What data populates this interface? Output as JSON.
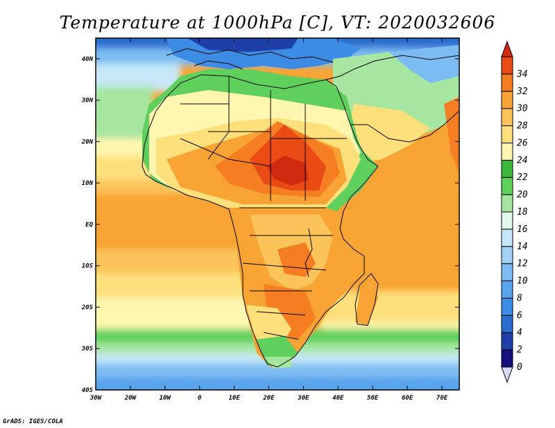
{
  "title": "Temperature at 1000hPa [C], VT: 2020032606",
  "credit": "GrADS: IGES/COLA",
  "map": {
    "region": "Africa",
    "lon_range": [
      -30,
      75
    ],
    "lat_range": [
      -40,
      45
    ],
    "lon_ticks": [
      {
        "value": -30,
        "label": "30W"
      },
      {
        "value": -20,
        "label": "20W"
      },
      {
        "value": -10,
        "label": "10W"
      },
      {
        "value": 0,
        "label": "0"
      },
      {
        "value": 10,
        "label": "10E"
      },
      {
        "value": 20,
        "label": "20E"
      },
      {
        "value": 30,
        "label": "30E"
      },
      {
        "value": 40,
        "label": "40E"
      },
      {
        "value": 50,
        "label": "50E"
      },
      {
        "value": 60,
        "label": "60E"
      },
      {
        "value": 70,
        "label": "70E"
      }
    ],
    "lat_ticks": [
      {
        "value": 40,
        "label": "40N"
      },
      {
        "value": 30,
        "label": "30N"
      },
      {
        "value": 20,
        "label": "20N"
      },
      {
        "value": 10,
        "label": "10N"
      },
      {
        "value": 0,
        "label": "EQ"
      },
      {
        "value": -10,
        "label": "10S"
      },
      {
        "value": -20,
        "label": "20S"
      },
      {
        "value": -30,
        "label": "30S"
      },
      {
        "value": -40,
        "label": "40S"
      }
    ]
  },
  "colorbar": {
    "levels": [
      {
        "label": "0",
        "color": "#160f7c"
      },
      {
        "label": "2",
        "color": "#1e3fa8"
      },
      {
        "label": "4",
        "color": "#2a6ed0"
      },
      {
        "label": "6",
        "color": "#3c8be4"
      },
      {
        "label": "8",
        "color": "#5aa4ec"
      },
      {
        "label": "10",
        "color": "#7dbcf2"
      },
      {
        "label": "12",
        "color": "#a0d2f6"
      },
      {
        "label": "14",
        "color": "#c6e8f8"
      },
      {
        "label": "16",
        "color": "#e2f8e8"
      },
      {
        "label": "18",
        "color": "#a6e6a0"
      },
      {
        "label": "20",
        "color": "#5fd05c"
      },
      {
        "label": "22",
        "color": "#3cb83c"
      },
      {
        "label": "24",
        "color": "#fff7b0"
      },
      {
        "label": "26",
        "color": "#fde07c"
      },
      {
        "label": "28",
        "color": "#fbc45a"
      },
      {
        "label": "30",
        "color": "#f8a434"
      },
      {
        "label": "32",
        "color": "#f57d22"
      },
      {
        "label": "34",
        "color": "#ea4a14"
      }
    ],
    "under_color": "#d8d8f8",
    "over_color": "#d22a10"
  }
}
